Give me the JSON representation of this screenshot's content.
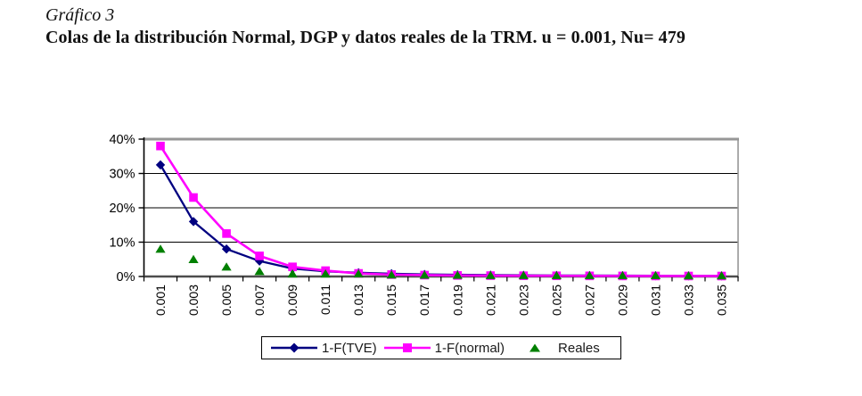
{
  "header": {
    "label": "Gráfico 3",
    "title": "Colas de la distribución Normal, DGP y datos reales de la TRM. u = 0.001, Nu= 479"
  },
  "chart_data": {
    "type": "line",
    "x": [
      0.001,
      0.003,
      0.005,
      0.007,
      0.009,
      0.011,
      0.013,
      0.015,
      0.017,
      0.019,
      0.021,
      0.023,
      0.025,
      0.027,
      0.029,
      0.031,
      0.033,
      0.035
    ],
    "x_labels": [
      "0.001",
      "0.003",
      "0.005",
      "0.007",
      "0.009",
      "0.011",
      "0.013",
      "0.015",
      "0.017",
      "0.019",
      "0.021",
      "0.023",
      "0.025",
      "0.027",
      "0.029",
      "0.031",
      "0.033",
      "0.035"
    ],
    "series": [
      {
        "name": "1-F(TVE)",
        "marker": "diamond",
        "line": true,
        "color": "#000080",
        "values": [
          32.5,
          16.0,
          8.0,
          4.5,
          2.3,
          1.5,
          1.1,
          0.8,
          0.6,
          0.5,
          0.4,
          0.35,
          0.3,
          0.27,
          0.24,
          0.21,
          0.19,
          0.17
        ]
      },
      {
        "name": "1-F(normal)",
        "marker": "square",
        "line": true,
        "color": "#FF00FF",
        "values": [
          38.0,
          23.0,
          12.5,
          6.0,
          2.8,
          1.7,
          0.9,
          0.55,
          0.4,
          0.3,
          0.25,
          0.22,
          0.2,
          0.18,
          0.16,
          0.15,
          0.14,
          0.13
        ]
      },
      {
        "name": "Reales",
        "marker": "triangle",
        "line": false,
        "color": "#008000",
        "values": [
          8.0,
          5.0,
          2.8,
          1.5,
          0.8,
          0.8,
          0.8,
          0.5,
          0.45,
          0.4,
          0.35,
          0.35,
          0.3,
          0.3,
          0.3,
          0.3,
          0.25,
          0.25
        ]
      }
    ],
    "ylim": [
      0,
      40
    ],
    "yticks": [
      0,
      10,
      20,
      30,
      40
    ],
    "ytick_labels": [
      "0%",
      "10%",
      "20%",
      "30%",
      "40%"
    ],
    "grid": true,
    "legend_position": "bottom",
    "colors": {
      "gridline": "#000000",
      "plot_top_border": "#969696",
      "plot_right_border": "#969696",
      "baseline": "#4d4d4d",
      "axis": "#000000",
      "tick_label": "#000000"
    }
  }
}
